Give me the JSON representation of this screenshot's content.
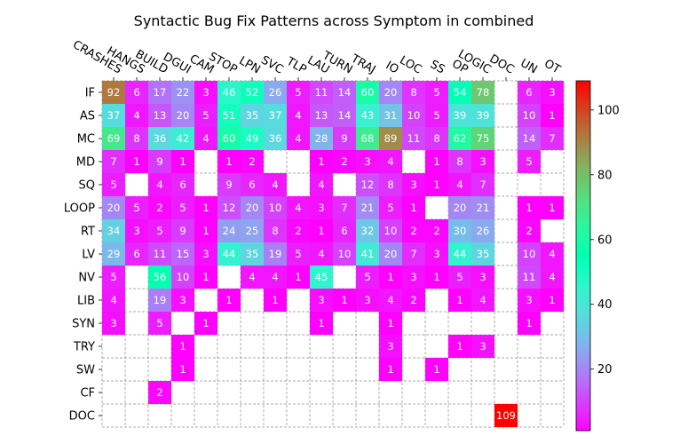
{
  "chart_data": {
    "type": "heatmap",
    "title": "Syntactic Bug Fix Patterns across Symptom in combined",
    "x_categories": [
      "CRASHES",
      "HANGS",
      "BUILD",
      "DGUI",
      "CAM",
      "STOP",
      "LPN",
      "SVC",
      "TLP",
      "LAU",
      "TURN",
      "TRAJ",
      "IO",
      "LOC",
      "SS",
      "OP",
      "LOGIC",
      "DOC",
      "UN",
      "OT"
    ],
    "y_categories": [
      "IF",
      "AS",
      "MC",
      "MD",
      "SQ",
      "LOOP",
      "RT",
      "LV",
      "NV",
      "LIB",
      "SYN",
      "TRY",
      "SW",
      "CF",
      "DOC"
    ],
    "values": [
      [
        92,
        6,
        17,
        22,
        3,
        46,
        52,
        26,
        5,
        11,
        14,
        60,
        20,
        8,
        5,
        54,
        78,
        null,
        6,
        3
      ],
      [
        37,
        4,
        13,
        20,
        5,
        51,
        35,
        37,
        4,
        13,
        14,
        43,
        31,
        10,
        5,
        39,
        39,
        null,
        10,
        1
      ],
      [
        69,
        8,
        36,
        42,
        4,
        60,
        49,
        36,
        4,
        28,
        9,
        68,
        89,
        11,
        8,
        62,
        75,
        null,
        14,
        7
      ],
      [
        7,
        1,
        9,
        1,
        null,
        1,
        2,
        null,
        null,
        1,
        2,
        3,
        4,
        null,
        1,
        8,
        3,
        null,
        5,
        null
      ],
      [
        5,
        null,
        4,
        6,
        null,
        9,
        6,
        4,
        null,
        4,
        null,
        12,
        8,
        3,
        1,
        4,
        7,
        null,
        null,
        null
      ],
      [
        20,
        5,
        2,
        5,
        1,
        12,
        20,
        10,
        4,
        3,
        7,
        21,
        5,
        1,
        null,
        20,
        21,
        null,
        1,
        1
      ],
      [
        34,
        3,
        5,
        9,
        1,
        24,
        25,
        8,
        2,
        1,
        6,
        32,
        10,
        2,
        2,
        30,
        26,
        null,
        2,
        null
      ],
      [
        29,
        6,
        11,
        15,
        3,
        44,
        35,
        19,
        5,
        4,
        10,
        41,
        20,
        7,
        3,
        44,
        35,
        null,
        10,
        4
      ],
      [
        5,
        null,
        56,
        10,
        1,
        null,
        4,
        4,
        1,
        45,
        null,
        5,
        1,
        3,
        1,
        5,
        3,
        null,
        11,
        4
      ],
      [
        4,
        null,
        19,
        3,
        null,
        1,
        null,
        1,
        null,
        3,
        1,
        3,
        4,
        2,
        null,
        1,
        4,
        null,
        3,
        1
      ],
      [
        3,
        null,
        5,
        null,
        1,
        null,
        null,
        null,
        null,
        1,
        null,
        null,
        1,
        null,
        null,
        null,
        null,
        null,
        1,
        null
      ],
      [
        null,
        null,
        null,
        1,
        null,
        null,
        null,
        null,
        null,
        null,
        null,
        null,
        3,
        null,
        null,
        1,
        3,
        null,
        null,
        null
      ],
      [
        null,
        null,
        null,
        1,
        null,
        null,
        null,
        null,
        null,
        null,
        null,
        null,
        1,
        null,
        1,
        null,
        null,
        null,
        null,
        null
      ],
      [
        null,
        null,
        2,
        null,
        null,
        null,
        null,
        null,
        null,
        null,
        null,
        null,
        null,
        null,
        null,
        null,
        null,
        null,
        null,
        null
      ],
      [
        null,
        null,
        null,
        null,
        null,
        null,
        null,
        null,
        null,
        null,
        null,
        null,
        null,
        null,
        null,
        null,
        null,
        109,
        null,
        null
      ]
    ],
    "colormap": "rainbow",
    "colorbar": {
      "range": [
        1,
        109
      ],
      "ticks": [
        20,
        40,
        60,
        80,
        100
      ]
    },
    "grid": "dashed"
  }
}
